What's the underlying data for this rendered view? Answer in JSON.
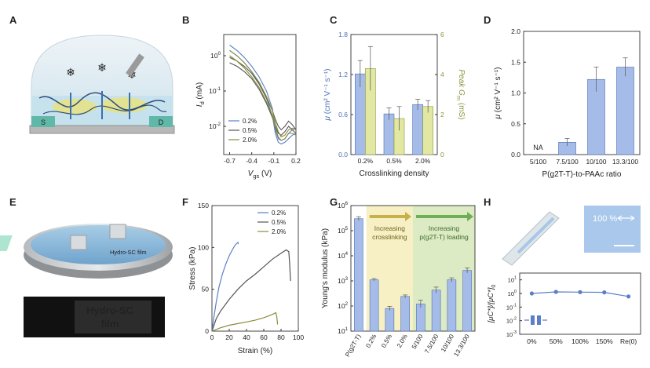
{
  "panel_labels": [
    "A",
    "B",
    "C",
    "D",
    "E",
    "F",
    "G",
    "H"
  ],
  "panelA": {
    "source_label": "S",
    "drain_label": "D"
  },
  "panelE": {
    "film_label": "Hydro-SC film",
    "photo_label_line1": "Hydro-SC",
    "photo_label_line2": "film"
  },
  "chart_data": [
    {
      "id": "B",
      "type": "line",
      "title": "",
      "xlabel_main": "V",
      "xlabel_sub": "gs",
      "xlabel_unit": " (V)",
      "ylabel_main": "I",
      "ylabel_sub": "d",
      "ylabel_unit": " (mA)",
      "xlim": [
        -0.78,
        0.2
      ],
      "ylim_log10": [
        -2.8,
        0.6
      ],
      "xticks": [
        -0.7,
        -0.4,
        -0.1,
        0.2
      ],
      "xtick_labels": [
        "-0.7",
        "-0.4",
        "-0.1",
        "0.2"
      ],
      "yticks_log10": [
        0,
        -1,
        -2
      ],
      "ytick_labels": [
        "10^0",
        "10^-1",
        "10^-2"
      ],
      "legend": [
        "0.2%",
        "0.5%",
        "2.0%"
      ],
      "series": [
        {
          "name": "0.2%",
          "color": "#5b7fc7",
          "x": [
            -0.7,
            -0.6,
            -0.5,
            -0.4,
            -0.3,
            -0.2,
            -0.12,
            -0.08,
            -0.04,
            0.0,
            0.05,
            0.1,
            0.15,
            0.2
          ],
          "log10_y": [
            0.3,
            0.15,
            -0.05,
            -0.3,
            -0.6,
            -1.0,
            -1.5,
            -2.1,
            -2.35,
            -2.4,
            -2.35,
            -2.2,
            -2.1,
            -2.05
          ]
        },
        {
          "name": "0.2% (reverse)",
          "color": "#5b7fc7",
          "x": [
            -0.7,
            -0.6,
            -0.5,
            -0.4,
            -0.3,
            -0.2,
            -0.12,
            -0.08,
            -0.04,
            0.0,
            0.05,
            0.1,
            0.15,
            0.2
          ],
          "log10_y": [
            0.15,
            0.0,
            -0.2,
            -0.45,
            -0.8,
            -1.2,
            -1.7,
            -2.2,
            -2.45,
            -2.5,
            -2.45,
            -2.35,
            -2.25,
            -2.2
          ]
        },
        {
          "name": "0.5%",
          "color": "#555555",
          "x": [
            -0.7,
            -0.6,
            -0.5,
            -0.4,
            -0.3,
            -0.2,
            -0.12,
            -0.08,
            -0.04,
            0.0,
            0.05,
            0.1,
            0.15,
            0.2
          ],
          "log10_y": [
            -0.05,
            -0.15,
            -0.3,
            -0.5,
            -0.8,
            -1.2,
            -1.55,
            -1.8,
            -2.0,
            -2.1,
            -2.0,
            -1.85,
            -1.95,
            -2.1
          ]
        },
        {
          "name": "0.5% (reverse)",
          "color": "#555555",
          "x": [
            -0.7,
            -0.6,
            -0.5,
            -0.4,
            -0.3,
            -0.2,
            -0.12,
            -0.08,
            -0.04,
            0.0,
            0.05,
            0.1,
            0.15,
            0.2
          ],
          "log10_y": [
            -0.2,
            -0.3,
            -0.45,
            -0.65,
            -0.95,
            -1.35,
            -1.75,
            -2.0,
            -2.2,
            -2.25,
            -2.15,
            -2.0,
            -2.1,
            -2.2
          ]
        },
        {
          "name": "2.0%",
          "color": "#8a8d3a",
          "x": [
            -0.7,
            -0.6,
            -0.5,
            -0.4,
            -0.3,
            -0.2,
            -0.12,
            -0.08,
            -0.04,
            0.0,
            0.05,
            0.1,
            0.15,
            0.2
          ],
          "log10_y": [
            0.15,
            0.0,
            -0.2,
            -0.45,
            -0.75,
            -1.15,
            -1.55,
            -1.9,
            -2.15,
            -2.3,
            -2.25,
            -2.1,
            -2.05,
            -2.1
          ]
        },
        {
          "name": "2.0% (reverse)",
          "color": "#8a8d3a",
          "x": [
            -0.7,
            -0.6,
            -0.5,
            -0.4,
            -0.3,
            -0.2,
            -0.12,
            -0.08,
            -0.04,
            0.0,
            0.05,
            0.1,
            0.15,
            0.2
          ],
          "log10_y": [
            0.0,
            -0.15,
            -0.35,
            -0.6,
            -0.9,
            -1.3,
            -1.7,
            -2.05,
            -2.3,
            -2.4,
            -2.35,
            -2.2,
            -2.2,
            -2.25
          ]
        }
      ]
    },
    {
      "id": "C",
      "type": "bar",
      "xlabel": "Crosslinking density",
      "categories": [
        "0.2%",
        "0.5%",
        "2.0%"
      ],
      "ylabel_left_main": "μ",
      "ylabel_left_unit": " (cm² V⁻¹ s⁻¹)",
      "ylabel_right_main": "Peak G",
      "ylabel_right_sub": "m",
      "ylabel_right_unit": " (mS)",
      "ylim_left": [
        0,
        1.8
      ],
      "yticks_left": [
        0,
        0.6,
        1.2,
        1.8
      ],
      "ytick_labels_left": [
        "0.0",
        "0.6",
        "1.2",
        "1.8"
      ],
      "ylim_right": [
        0,
        6
      ],
      "yticks_right": [
        0,
        2,
        4,
        6
      ],
      "ytick_labels_right": [
        "0",
        "2",
        "4",
        "6"
      ],
      "series": [
        {
          "name": "μ",
          "axis": "left",
          "color": "#a6bce8",
          "edge": "#4e6fb5",
          "values": [
            1.21,
            0.61,
            0.75
          ],
          "errors": [
            0.2,
            0.09,
            0.08
          ]
        },
        {
          "name": "Peak Gm",
          "axis": "right",
          "color": "#e2e8a2",
          "edge": "#8d9440",
          "values": [
            4.3,
            1.8,
            2.4
          ],
          "errors": [
            1.1,
            0.6,
            0.3
          ]
        }
      ]
    },
    {
      "id": "D",
      "type": "bar",
      "xlabel": "P(g2T-T)-to-PAAc ratio",
      "categories": [
        "5/100",
        "7.5/100",
        "10/100",
        "13.3/100"
      ],
      "ylabel_main": "μ",
      "ylabel_unit": " (cm² V⁻¹ s⁻¹)",
      "ylim": [
        0,
        2.0
      ],
      "yticks": [
        0,
        0.5,
        1.0,
        1.5,
        2.0
      ],
      "ytick_labels": [
        "0.0",
        "0.5",
        "1.0",
        "1.5",
        "2.0"
      ],
      "series": [
        {
          "name": "μ",
          "color": "#a6bce8",
          "edge": "#4e6fb5",
          "values": [
            null,
            0.2,
            1.22,
            1.42
          ],
          "errors": [
            0,
            0.06,
            0.2,
            0.15
          ]
        }
      ],
      "annotations": [
        "NA"
      ]
    },
    {
      "id": "F",
      "type": "line",
      "xlabel": "Strain (%)",
      "ylabel": "Stress (kPa)",
      "xlim": [
        0,
        100
      ],
      "ylim": [
        0,
        150
      ],
      "xticks": [
        0,
        20,
        40,
        60,
        80,
        100
      ],
      "xtick_labels": [
        "0",
        "20",
        "40",
        "60",
        "80",
        "100"
      ],
      "yticks": [
        0,
        50,
        100,
        150
      ],
      "ytick_labels": [
        "0",
        "50",
        "100",
        "150"
      ],
      "legend": [
        "0.2%",
        "0.5%",
        "2.0%"
      ],
      "series": [
        {
          "name": "0.2%",
          "color": "#5b7fc7",
          "x": [
            0,
            2,
            5,
            8,
            12,
            16,
            20,
            24,
            27,
            29,
            30,
            30.5
          ],
          "y": [
            0,
            15,
            35,
            52,
            68,
            80,
            90,
            98,
            103,
            105,
            106,
            104
          ]
        },
        {
          "name": "0.5%",
          "color": "#555555",
          "x": [
            0,
            5,
            10,
            20,
            30,
            40,
            50,
            60,
            70,
            80,
            86,
            89,
            90,
            91
          ],
          "y": [
            0,
            15,
            24,
            38,
            50,
            60,
            68,
            77,
            86,
            93,
            97,
            95,
            80,
            60
          ]
        },
        {
          "name": "2.0%",
          "color": "#8a8d3a",
          "x": [
            0,
            5,
            10,
            20,
            30,
            40,
            50,
            60,
            65,
            70,
            74,
            75,
            76
          ],
          "y": [
            0,
            2,
            4,
            7,
            9,
            11,
            13,
            16,
            18,
            20,
            22,
            18,
            8
          ]
        }
      ]
    },
    {
      "id": "G",
      "type": "bar",
      "yscale": "log",
      "ylabel": "Young's modulus (kPa)",
      "categories": [
        "P(g2T-T)",
        "0.2%",
        "0.5%",
        "2.0%",
        "5/100",
        "7.5/100",
        "10/100",
        "13.3/100"
      ],
      "values": [
        300000,
        1100,
        80,
        240,
        120,
        430,
        1100,
        2600
      ],
      "errors_log10": [
        0.08,
        0.05,
        0.08,
        0.06,
        0.15,
        0.12,
        0.08,
        0.1
      ],
      "ylim_log10": [
        1,
        6
      ],
      "yticks_log10": [
        1,
        2,
        3,
        4,
        5,
        6
      ],
      "ytick_labels": [
        "10^1",
        "10^2",
        "10^3",
        "10^4",
        "10^5",
        "10^6"
      ],
      "annotations": [
        {
          "text_line1": "Increasing",
          "text_line2": "crosslinking"
        },
        {
          "text_line1": "Increasing",
          "text_line2": "p(g2T-T) loading"
        }
      ]
    },
    {
      "id": "H",
      "type": "line",
      "yscale": "log",
      "ylabel_main": "[μC*]/[μC*]",
      "ylabel_sub": "0",
      "categories": [
        "0%",
        "50%",
        "100%",
        "150%",
        "Re(0)"
      ],
      "values": [
        1.0,
        1.3,
        1.25,
        1.2,
        0.6
      ],
      "ylim_log10": [
        -3,
        1.5
      ],
      "yticks_log10": [
        1,
        0,
        -1,
        -2,
        -3
      ],
      "ytick_labels": [
        "10^1",
        "10^0",
        "10^-1",
        "10^-2",
        "10^-3"
      ],
      "photo_label": "100 %"
    }
  ]
}
